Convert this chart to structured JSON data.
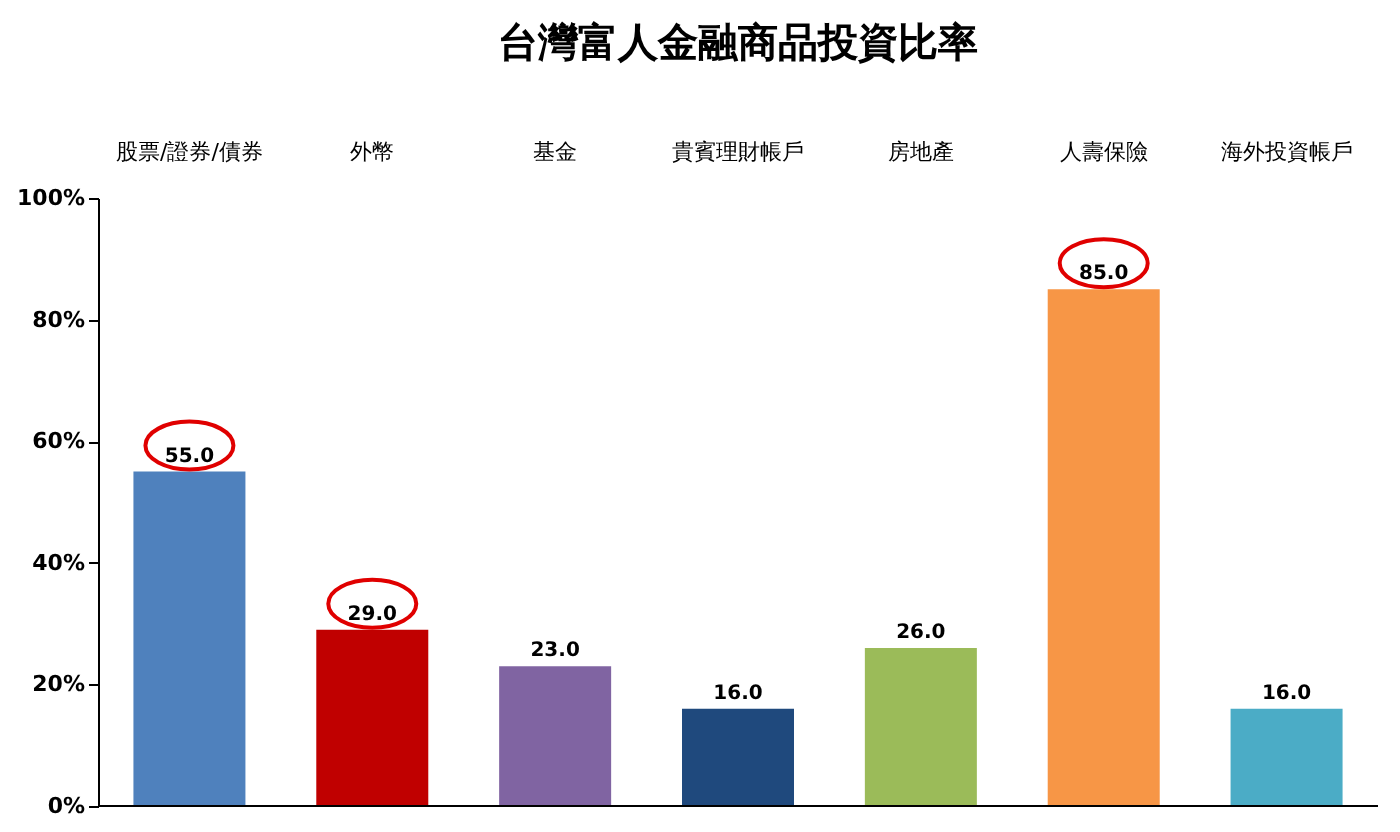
{
  "chart_data": {
    "type": "bar",
    "title": "台灣富人金融商品投資比率",
    "categories": [
      "股票/證券/債券",
      "外幣",
      "基金",
      "貴賓理財帳戶",
      "房地產",
      "人壽保險",
      "海外投資帳戶"
    ],
    "values": [
      55,
      29,
      23,
      16,
      26,
      85,
      16
    ],
    "colors": [
      "#4f81bd",
      "#c00000",
      "#8064a2",
      "#1f497d",
      "#9bbb59",
      "#f79646",
      "#4bacc6"
    ],
    "value_labels": [
      "55.0",
      "29.0",
      "23.0",
      "16.0",
      "26.0",
      "85.0",
      "16.0"
    ],
    "ylim": [
      0,
      100
    ],
    "yticks": [
      {
        "value": 0,
        "label": "0%"
      },
      {
        "value": 20,
        "label": "20%"
      },
      {
        "value": 40,
        "label": "40%"
      },
      {
        "value": 60,
        "label": "60%"
      },
      {
        "value": 80,
        "label": "80%"
      },
      {
        "value": 100,
        "label": "100%"
      }
    ],
    "grid": false
  }
}
